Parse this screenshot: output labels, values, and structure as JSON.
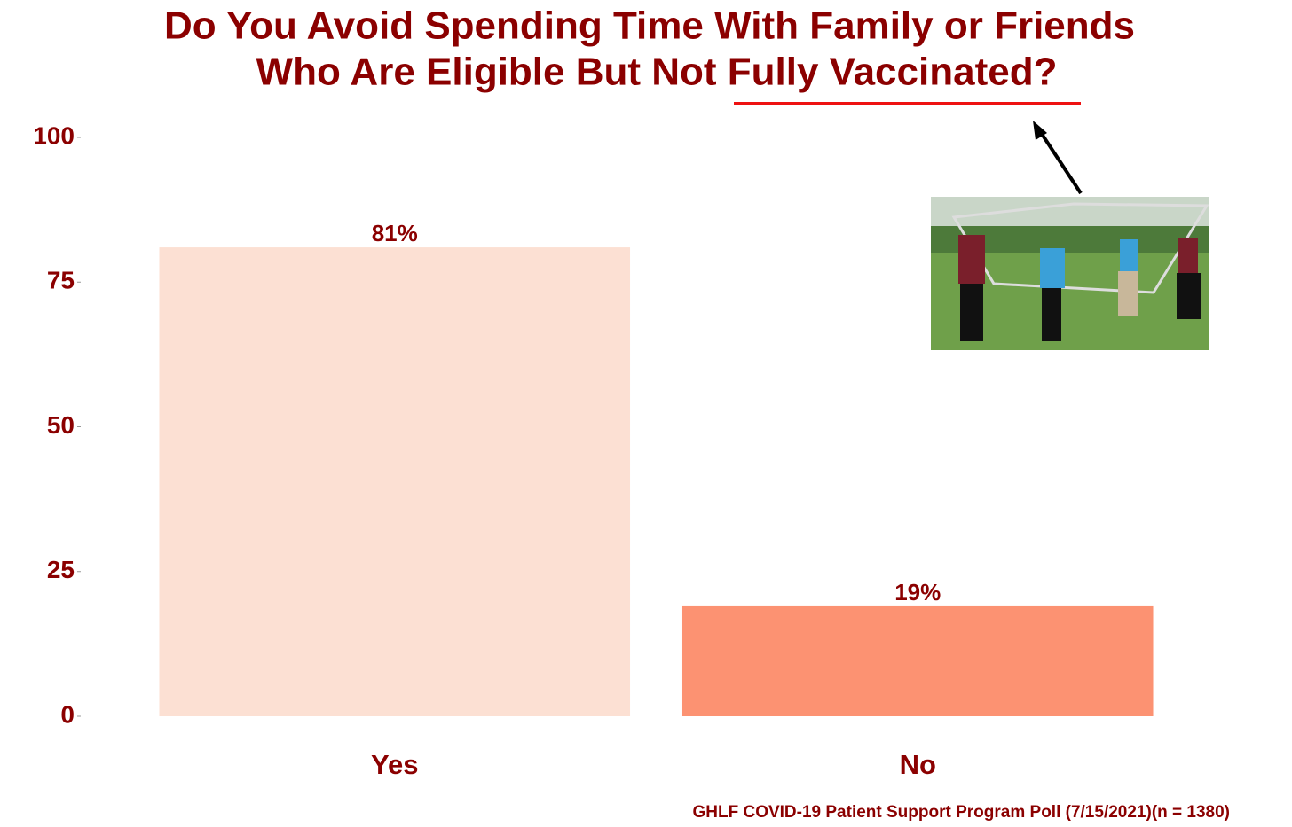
{
  "chart_data": {
    "type": "bar",
    "title": [
      "Do You Avoid Spending Time With Family or Friends",
      "Who Are Eligible But Not Fully Vaccinated?"
    ],
    "categories": [
      "Yes",
      "No"
    ],
    "values": [
      81,
      19
    ],
    "value_labels": [
      "81%",
      "19%"
    ],
    "colors": [
      "#fce0d3",
      "#fc9272"
    ],
    "ylim": [
      0,
      100
    ],
    "yticks": [
      0,
      25,
      50,
      75,
      100
    ],
    "grid": false,
    "caption": "GHLF COVID-19 Patient Support Program Poll (7/15/2021)(n = 1380)"
  }
}
